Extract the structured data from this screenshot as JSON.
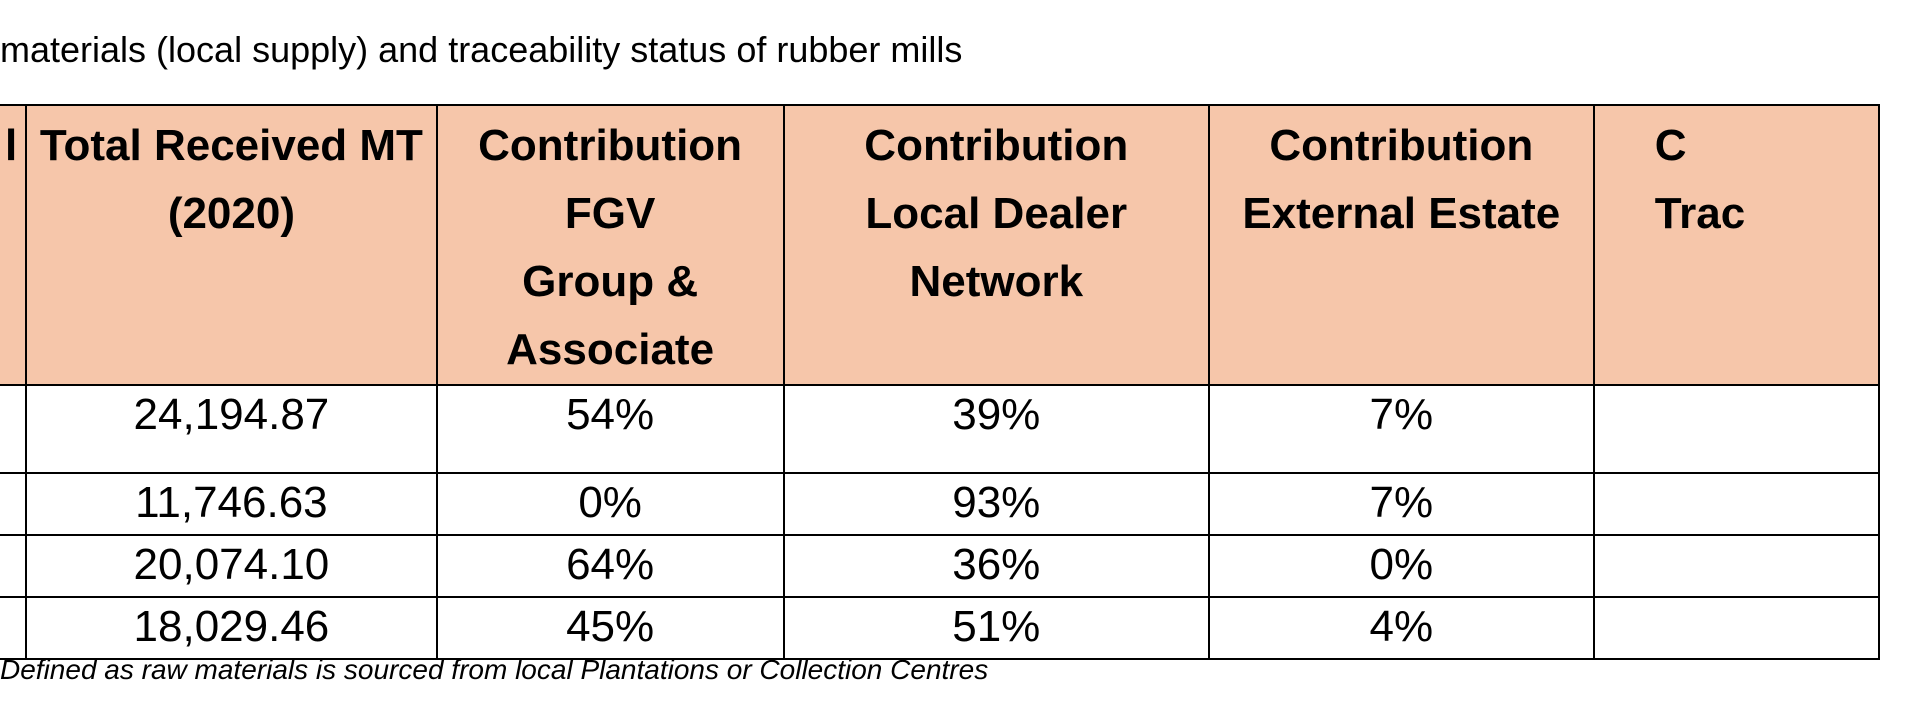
{
  "title": "materials (local supply) and traceability status of rubber mills",
  "table": {
    "headers": [
      "l",
      "Total Received MT\n(2020)",
      "Contribution FGV\nGroup &\nAssociate",
      "Contribution\nLocal Dealer\nNetwork",
      "Contribution\nExternal Estate",
      "C\nTrac"
    ],
    "rows": [
      [
        "",
        "24,194.87",
        "54%",
        "39%",
        "7%",
        ""
      ],
      [
        "",
        "11,746.63",
        "0%",
        "93%",
        "7%",
        ""
      ],
      [
        "",
        "20,074.10",
        "64%",
        "36%",
        "0%",
        ""
      ],
      [
        "",
        "18,029.46",
        "45%",
        "51%",
        "4%",
        ""
      ]
    ]
  },
  "footnote": "Defined as raw materials is sourced from local Plantations or Collection Centres",
  "colors": {
    "header_background": "#f6c6aa",
    "border": "#000000"
  }
}
